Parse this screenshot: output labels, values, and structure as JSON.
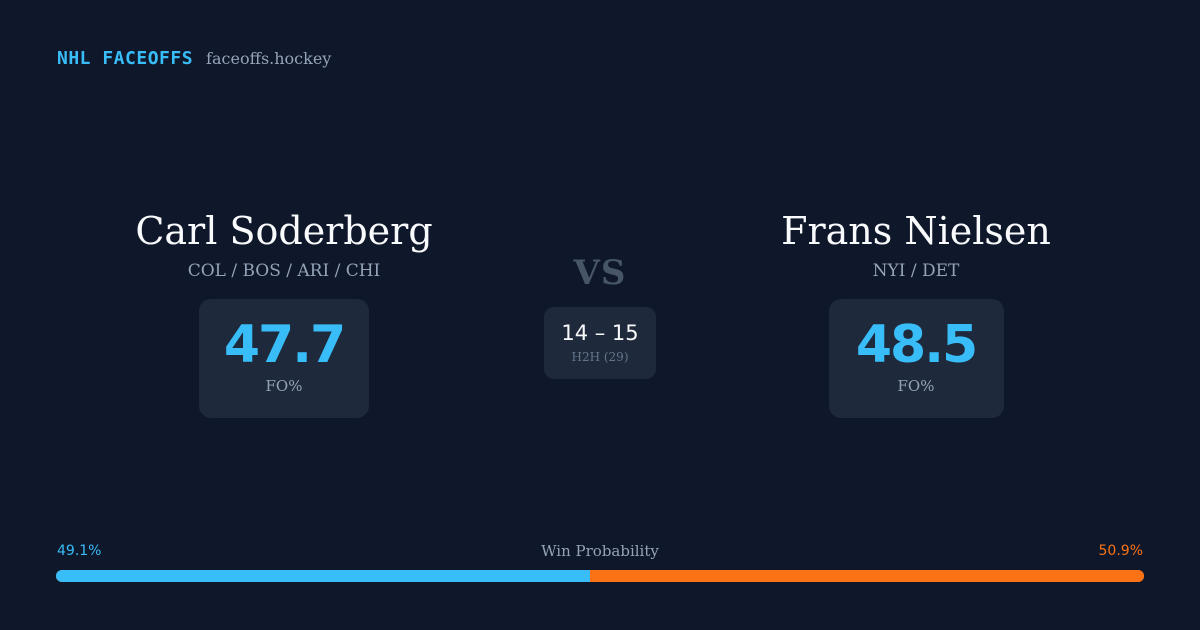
{
  "header": {
    "brand": "NHL FACEOFFS",
    "site": "faceoffs.hockey"
  },
  "player_left": {
    "name": "Carl Soderberg",
    "teams": "COL / BOS / ARI / CHI",
    "fo_pct": "47.7",
    "fo_label": "FO%"
  },
  "player_right": {
    "name": "Frans Nielsen",
    "teams": "NYI / DET",
    "fo_pct": "48.5",
    "fo_label": "FO%"
  },
  "matchup": {
    "vs": "VS",
    "h2h_score": "14 – 15",
    "h2h_label": "H2H (29)"
  },
  "win_probability": {
    "title": "Win Probability",
    "left_label": "49.1%",
    "right_label": "50.9%",
    "left_value": 49.1,
    "right_value": 50.9
  },
  "colors": {
    "background": "#0f172a",
    "card": "#1e293b",
    "accent_left": "#38bdf8",
    "accent_right": "#f97316",
    "muted": "#94a3b8"
  }
}
